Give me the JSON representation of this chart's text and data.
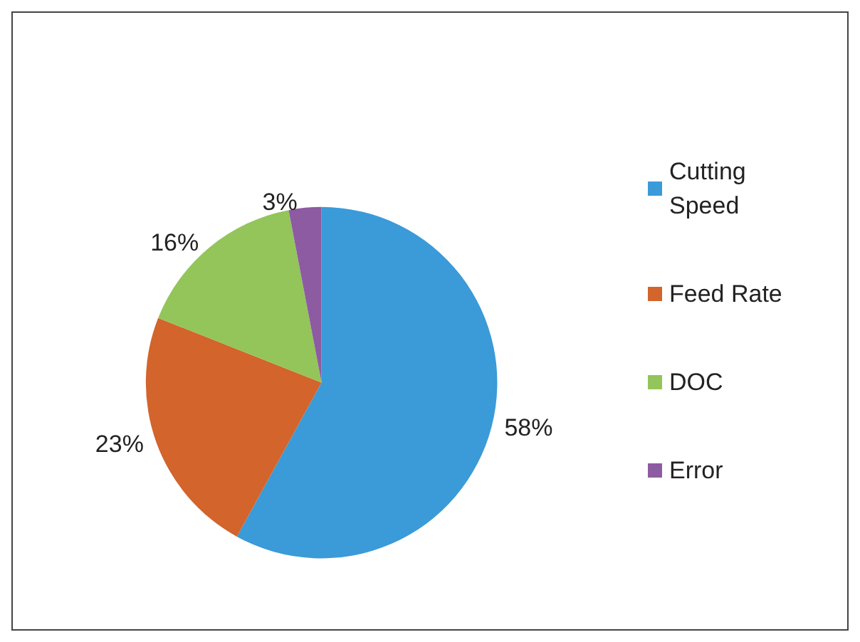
{
  "chart_data": {
    "type": "pie",
    "categories": [
      "Cutting Speed",
      "Feed Rate",
      "DOC",
      "Error"
    ],
    "values": [
      58,
      23,
      16,
      3
    ],
    "colors": [
      "#3b9ad8",
      "#d2642c",
      "#93c55b",
      "#8d5ba2"
    ],
    "value_labels": [
      "58%",
      "23%",
      "16%",
      "3%"
    ],
    "legend": "right"
  }
}
